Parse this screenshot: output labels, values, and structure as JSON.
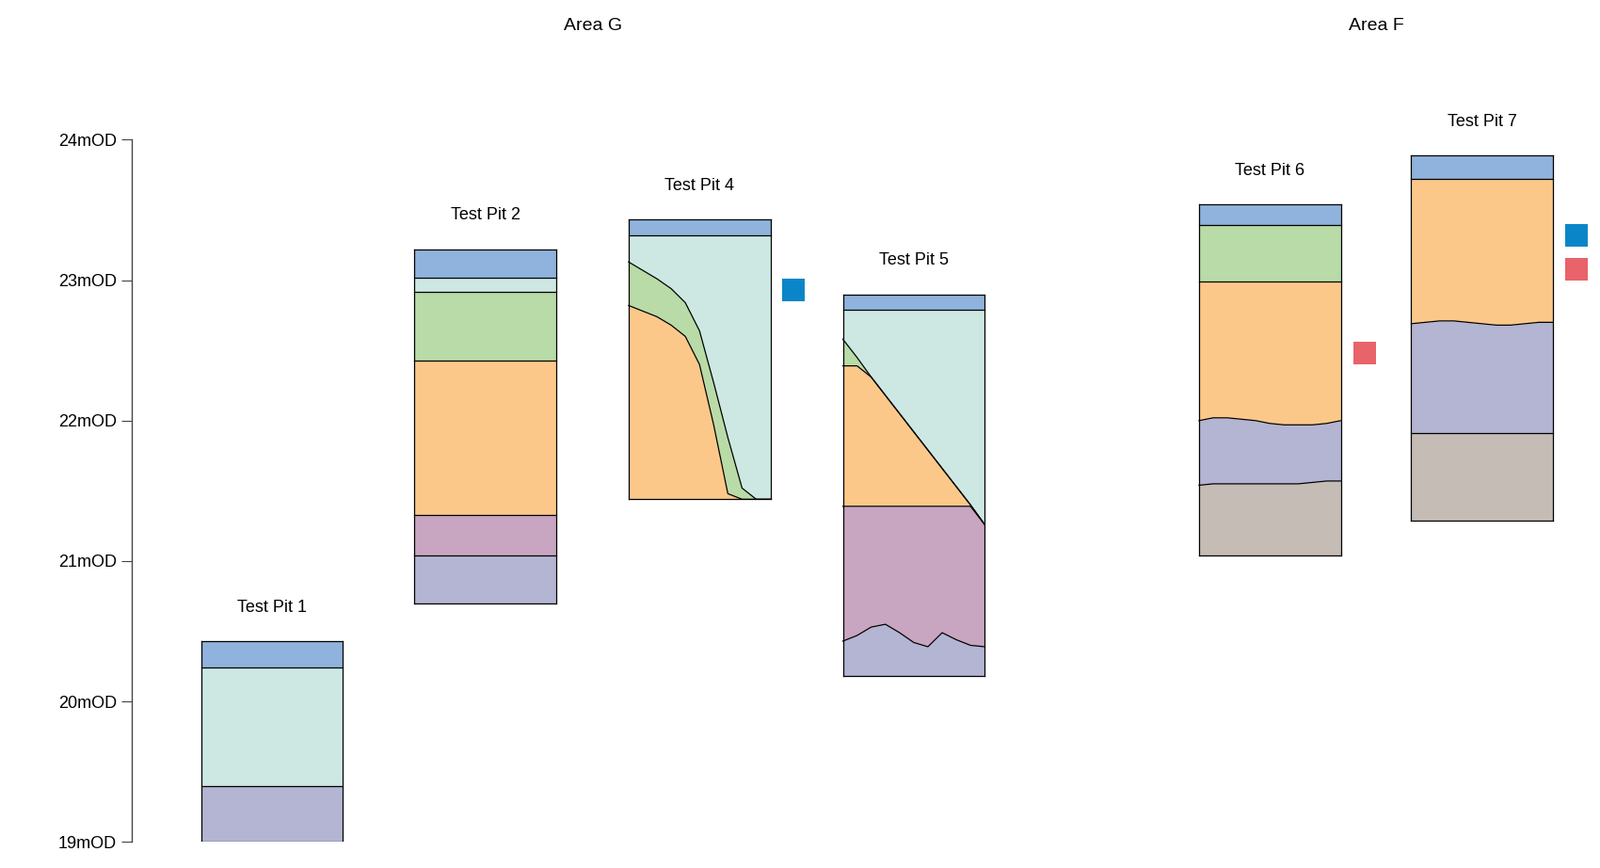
{
  "chart_data": {
    "type": "section",
    "ylim": [
      19,
      24
    ],
    "yticks": [
      {
        "value": 19,
        "label": "19mOD"
      },
      {
        "value": 20,
        "label": "20mOD"
      },
      {
        "value": 21,
        "label": "21mOD"
      },
      {
        "value": 22,
        "label": "22mOD"
      },
      {
        "value": 23,
        "label": "23mOD"
      },
      {
        "value": 24,
        "label": "24mOD"
      }
    ],
    "areas": [
      {
        "name": "Area G",
        "pits": [
          {
            "name": "Test Pit 1",
            "bottom": 19.0,
            "layers": [
              {
                "color": "#8fb3dc",
                "top": 20.43
              },
              {
                "color": "#cde8e3",
                "top": 20.24
              },
              {
                "color": "#b3b5d3",
                "top": 19.4
              }
            ],
            "samples": []
          },
          {
            "name": "Test Pit 2",
            "bottom": 20.7,
            "layers": [
              {
                "color": "#8fb3dc",
                "top": 23.22
              },
              {
                "color": "#cde8e3",
                "top": 23.02
              },
              {
                "color": "#b9dba8",
                "top": 22.92
              },
              {
                "color": "#fcc88a",
                "top": 22.43
              },
              {
                "color": "#c8a5c0",
                "top": 21.33
              },
              {
                "color": "#b3b5d3",
                "top": 21.04
              }
            ],
            "samples": []
          },
          {
            "name": "Test Pit 4",
            "bottom": 21.44,
            "layers": [
              {
                "color": "#8fb3dc",
                "top": 23.43
              },
              {
                "color": "#cde8e3",
                "top": 23.32
              },
              {
                "color": "#b9dba8",
                "top": [
                  23.13,
                  23.07,
                  23.01,
                  22.94,
                  22.84,
                  22.64,
                  22.27,
                  21.88,
                  21.52,
                  21.44,
                  21.44
                ]
              },
              {
                "color": "#fcc88a",
                "top": [
                  22.82,
                  22.78,
                  22.74,
                  22.68,
                  22.6,
                  22.4,
                  21.97,
                  21.48,
                  21.44,
                  21.44,
                  21.44
                ]
              }
            ],
            "samples": [
              {
                "color": "#0a86c8",
                "elevation": 22.93
              }
            ]
          },
          {
            "name": "Test Pit 5",
            "bottom": 20.18,
            "layers": [
              {
                "color": "#8fb3dc",
                "top": 22.9
              },
              {
                "color": "#cde8e3",
                "top": 22.79
              },
              {
                "color": "#b9dba8",
                "top": [
                  22.58,
                  22.45,
                  22.31,
                  22.18,
                  22.05,
                  21.92,
                  21.79,
                  21.66,
                  21.53,
                  21.4,
                  21.26
                ]
              },
              {
                "color": "#fcc88a",
                "top": [
                  22.39,
                  22.39,
                  22.31,
                  22.18,
                  22.05,
                  21.92,
                  21.79,
                  21.66,
                  21.53,
                  21.4,
                  21.26
                ]
              },
              {
                "color": "#c8a5c0",
                "top": [
                  21.39,
                  21.39,
                  21.39,
                  21.39,
                  21.39,
                  21.39,
                  21.39,
                  21.39,
                  21.39,
                  21.39,
                  21.26
                ]
              },
              {
                "color": "#b3b5d3",
                "top": [
                  20.43,
                  20.47,
                  20.53,
                  20.55,
                  20.49,
                  20.42,
                  20.39,
                  20.49,
                  20.44,
                  20.4,
                  20.39
                ]
              }
            ],
            "samples": []
          }
        ]
      },
      {
        "name": "Area F",
        "pits": [
          {
            "name": "Test Pit 6",
            "bottom": 21.04,
            "layers": [
              {
                "color": "#8fb3dc",
                "top": 23.54
              },
              {
                "color": "#b9dba8",
                "top": 23.39
              },
              {
                "color": "#fcc88a",
                "top": 22.99
              },
              {
                "color": "#b3b5d3",
                "top": [
                  22.0,
                  22.02,
                  22.02,
                  22.01,
                  22.0,
                  21.98,
                  21.97,
                  21.97,
                  21.97,
                  21.98,
                  22.0
                ]
              },
              {
                "color": "#c5bcb6",
                "top": [
                  21.54,
                  21.55,
                  21.55,
                  21.55,
                  21.55,
                  21.55,
                  21.55,
                  21.55,
                  21.56,
                  21.57,
                  21.57
                ]
              }
            ],
            "samples": [
              {
                "color": "#e8636a",
                "elevation": 22.48
              }
            ]
          },
          {
            "name": "Test Pit 7",
            "bottom": 21.29,
            "layers": [
              {
                "color": "#8fb3dc",
                "top": 23.89
              },
              {
                "color": "#fcc88a",
                "top": 23.72
              },
              {
                "color": "#b3b5d3",
                "top": [
                  22.69,
                  22.7,
                  22.71,
                  22.71,
                  22.7,
                  22.69,
                  22.68,
                  22.68,
                  22.69,
                  22.7,
                  22.7
                ]
              },
              {
                "color": "#c5bcb6",
                "top": 21.91
              }
            ],
            "samples": [
              {
                "color": "#0a86c8",
                "elevation": 23.32
              },
              {
                "color": "#e8636a",
                "elevation": 23.08
              }
            ]
          }
        ]
      }
    ]
  }
}
